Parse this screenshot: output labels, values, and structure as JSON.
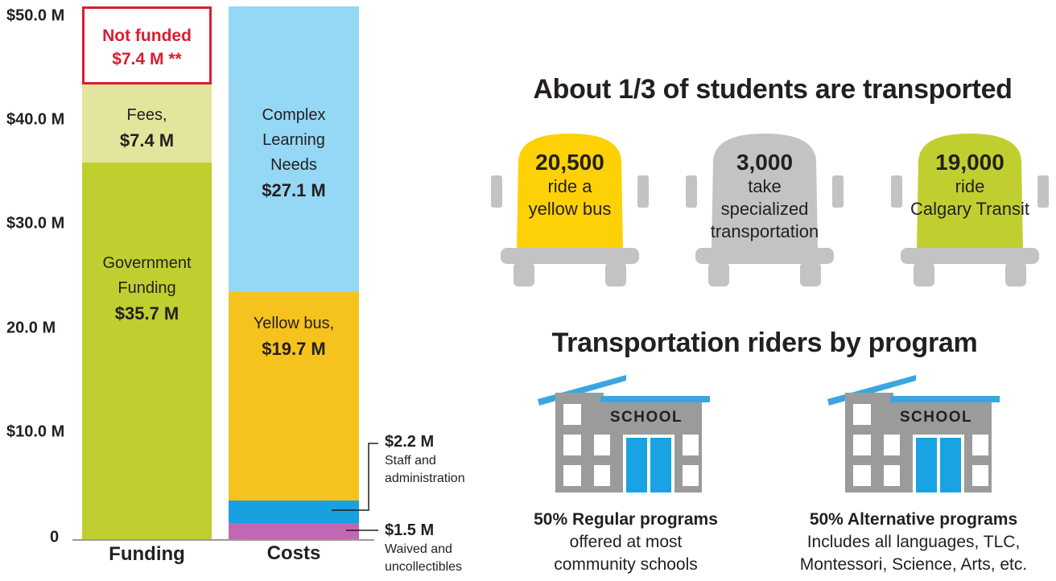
{
  "chart_data": {
    "type": "stacked-bar",
    "categories": [
      "Funding",
      "Costs"
    ],
    "y_ticks": [
      "$50.0 M",
      "$40.0 M",
      "$30.0 M",
      "20.0 M",
      "$10.0 M",
      "0"
    ],
    "ylim": [
      0,
      50
    ],
    "funding_segments": [
      {
        "label": "Government Funding",
        "display": "$35.7 M",
        "value": 35.7,
        "color": "#c0cf2f"
      },
      {
        "label": "Fees,",
        "display": "$7.4 M",
        "value": 7.4,
        "color": "#e2e69c"
      },
      {
        "label": "Not funded",
        "display": "$7.4 M **",
        "value": 7.4,
        "color": "#ffffff",
        "outline": "#d71f2f"
      }
    ],
    "cost_segments": [
      {
        "display": "$1.5 M",
        "value": 1.5,
        "color": "#c267b4"
      },
      {
        "display": "$2.2 M",
        "value": 2.2,
        "color": "#18a0e0"
      },
      {
        "label": "Yellow bus,",
        "display": "$19.7 M",
        "value": 19.7,
        "color": "#f6c21d"
      },
      {
        "label": "Complex Learning Needs",
        "display": "$27.1 M",
        "value": 27.1,
        "color": "#95d8f5"
      }
    ],
    "callouts": [
      {
        "value": "$2.2 M",
        "text_lines": [
          "Staff and",
          "administration"
        ]
      },
      {
        "value": "$1.5 M",
        "text_lines": [
          "Waived and",
          "uncollectibles"
        ]
      }
    ]
  },
  "labels": {
    "govt_lines": [
      "Government",
      "Funding"
    ],
    "fees_line": "Fees,",
    "not_funded_line": "Not funded",
    "cln_lines": [
      "Complex",
      "Learning",
      "Needs"
    ],
    "yellow_line": "Yellow bus,"
  },
  "transport": {
    "heading": "About 1/3 of students are transported",
    "buses": [
      {
        "number": "20,500",
        "lines": [
          "ride a",
          "yellow bus"
        ],
        "color": "#fed106"
      },
      {
        "number": "3,000",
        "lines": [
          "take",
          "specialized",
          "transportation"
        ],
        "color": "#c3c3c3"
      },
      {
        "number": "19,000",
        "lines": [
          "ride",
          "Calgary Transit"
        ],
        "color": "#c0cf2f"
      }
    ]
  },
  "programs": {
    "heading": "Transportation riders by program",
    "school_sign": "SCHOOL",
    "items": [
      {
        "title": "50% Regular programs",
        "lines": [
          "offered at most",
          "community schools"
        ]
      },
      {
        "title": "50% Alternative programs",
        "lines": [
          "Includes all languages, TLC,",
          "Montessori, Science, Arts, etc."
        ]
      }
    ]
  }
}
